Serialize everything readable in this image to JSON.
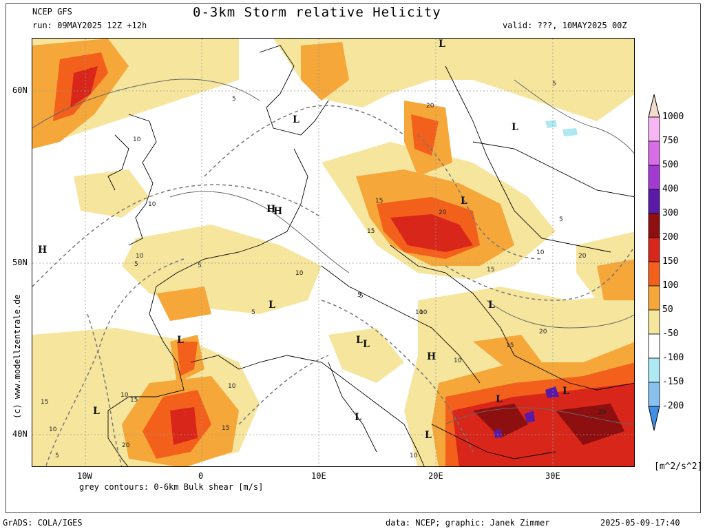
{
  "header": {
    "model": "NCEP GFS",
    "run": "run: 09MAY2025 12Z +12h",
    "title": "0-3km Storm relative Helicity",
    "valid": "valid: ???, 10MAY2025 00Z"
  },
  "axes": {
    "lat_labels": [
      "60N",
      "50N",
      "40N"
    ],
    "lon_labels": [
      "10W",
      "0",
      "10E",
      "20E",
      "30E"
    ]
  },
  "side_text": "(c) www.modellzentrale.de",
  "contour_note": "grey contours: 0-6km Bulk shear [m/s]",
  "colorbar": {
    "labels": [
      "1000",
      "750",
      "500",
      "400",
      "300",
      "200",
      "150",
      "100",
      "50",
      "-50",
      "-100",
      "-150",
      "-200"
    ],
    "colors": [
      "#f6b6f3",
      "#d86ee6",
      "#a23ad2",
      "#5a1aa6",
      "#8e0f0f",
      "#d8261a",
      "#f2601c",
      "#f5a73a",
      "#f6e59d",
      "#ffffff",
      "#aee8f2",
      "#88c0ee",
      "#3f8fe6"
    ],
    "top_cap_color": "#f2dccd",
    "unit": "[m^2/s^2]"
  },
  "map_labels": {
    "pressure_centers": [
      "L",
      "L",
      "H",
      "H",
      "L",
      "L",
      "L",
      "L",
      "H",
      "L",
      "L",
      "L",
      "L",
      "L",
      "L",
      "L",
      "L",
      "H"
    ],
    "contour_values": [
      "5",
      "10",
      "15",
      "20",
      "5",
      "10",
      "10",
      "5",
      "5",
      "10",
      "15",
      "20",
      "15",
      "10",
      "5",
      "10",
      "15",
      "20",
      "10",
      "15",
      "5",
      "20",
      "10",
      "5",
      "10",
      "5",
      "15",
      "20",
      "10",
      "15",
      "10",
      "5",
      "20",
      "10"
    ]
  },
  "footer": {
    "left": "GrADS: COLA/IGES",
    "center": "data: NCEP; graphic: Janek Zimmer",
    "right": "2025-05-09-17:40"
  }
}
